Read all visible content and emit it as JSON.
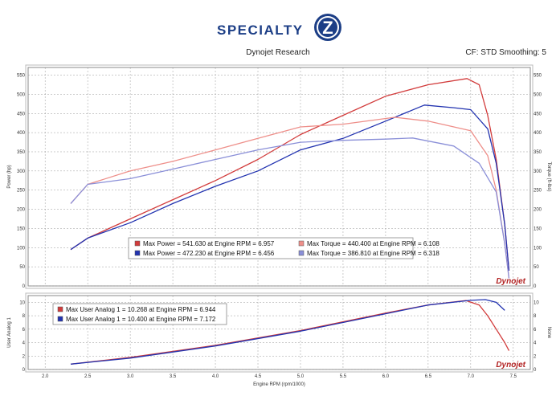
{
  "header": {
    "logo_text": "SPECIALTY",
    "logo_badge": "Z",
    "subtitle": "Dynojet Research",
    "cf_text": "CF: STD Smoothing: 5"
  },
  "brand_mark": "Dynojet",
  "colors": {
    "power_1": "#d23c3c",
    "power_2": "#2233b0",
    "torque_1": "#ee8f8a",
    "torque_2": "#8a8fd8"
  },
  "chart_data": [
    {
      "type": "line",
      "xlabel": "",
      "ylabel": "Power (hp)",
      "y2label": "Torque (ft-lbs)",
      "xlim": [
        1.8,
        7.7
      ],
      "ylim": [
        0,
        570
      ],
      "y_ticks": [
        0,
        50,
        100,
        150,
        200,
        250,
        300,
        350,
        400,
        450,
        500,
        550
      ],
      "grid": true,
      "legend_position": "bottom-center",
      "legend": [
        {
          "text": "Max Power = 541.630 at Engine RPM = 6.957",
          "color": "#d23c3c"
        },
        {
          "text": "Max Power = 472.230 at Engine RPM = 6.456",
          "color": "#2233b0"
        },
        {
          "text": "Max Torque = 440.400 at Engine RPM = 6.108",
          "color": "#ee8f8a"
        },
        {
          "text": "Max Torque = 386.810 at Engine RPM = 6.318",
          "color": "#8a8fd8"
        }
      ],
      "series": [
        {
          "key": "power_1",
          "color": "#d23c3c",
          "x": [
            2.3,
            2.5,
            3.0,
            3.5,
            4.0,
            4.5,
            5.0,
            5.5,
            6.0,
            6.5,
            6.957,
            7.1,
            7.2,
            7.3,
            7.4,
            7.45
          ],
          "y": [
            95,
            125,
            175,
            225,
            275,
            330,
            395,
            445,
            495,
            525,
            541,
            525,
            445,
            330,
            160,
            40
          ]
        },
        {
          "key": "power_2",
          "color": "#2233b0",
          "x": [
            2.3,
            2.5,
            3.0,
            3.5,
            4.0,
            4.5,
            5.0,
            5.5,
            6.0,
            6.456,
            6.8,
            7.0,
            7.2,
            7.3,
            7.4,
            7.45
          ],
          "y": [
            95,
            125,
            165,
            215,
            260,
            300,
            355,
            385,
            430,
            472,
            465,
            460,
            410,
            320,
            160,
            40
          ]
        },
        {
          "key": "torque_1",
          "color": "#ee8f8a",
          "x": [
            2.3,
            2.5,
            3.0,
            3.5,
            4.0,
            4.5,
            5.0,
            5.5,
            6.108,
            6.5,
            7.0,
            7.2,
            7.3,
            7.4,
            7.45
          ],
          "y": [
            215,
            265,
            300,
            325,
            355,
            385,
            415,
            422,
            440,
            430,
            405,
            340,
            250,
            110,
            20
          ]
        },
        {
          "key": "torque_2",
          "color": "#8a8fd8",
          "x": [
            2.3,
            2.5,
            3.0,
            3.5,
            4.0,
            4.5,
            5.0,
            5.5,
            6.0,
            6.318,
            6.8,
            7.1,
            7.3,
            7.4,
            7.45
          ],
          "y": [
            215,
            265,
            280,
            305,
            330,
            355,
            375,
            380,
            383,
            386,
            365,
            320,
            245,
            110,
            20
          ]
        }
      ]
    },
    {
      "type": "line",
      "xlabel": "Engine RPM (rpm/1000)",
      "ylabel": "User Analog 1",
      "y2label": "None",
      "xlim": [
        1.8,
        7.7
      ],
      "ylim": [
        0,
        11
      ],
      "x_ticks": [
        2.0,
        2.5,
        3.0,
        3.5,
        4.0,
        4.5,
        5.0,
        5.5,
        6.0,
        6.5,
        7.0,
        7.5
      ],
      "y_ticks": [
        0,
        2,
        4,
        6,
        8,
        10
      ],
      "grid": true,
      "legend_position": "top-left",
      "legend": [
        {
          "text": "Max User Analog 1 = 10.268 at Engine RPM = 6.944",
          "color": "#d23c3c"
        },
        {
          "text": "Max User Analog 1 = 10.400 at Engine RPM = 7.172",
          "color": "#2233b0"
        }
      ],
      "series": [
        {
          "key": "analog_1",
          "color": "#d23c3c",
          "x": [
            2.3,
            3.0,
            4.0,
            5.0,
            6.0,
            6.5,
            6.944,
            7.1,
            7.2,
            7.3,
            7.4,
            7.45
          ],
          "y": [
            0.8,
            1.8,
            3.6,
            5.8,
            8.4,
            9.6,
            10.268,
            9.6,
            8.0,
            6.0,
            4.0,
            2.8
          ]
        },
        {
          "key": "analog_2",
          "color": "#2233b0",
          "x": [
            2.3,
            3.0,
            4.0,
            5.0,
            6.0,
            6.5,
            7.0,
            7.172,
            7.3,
            7.4
          ],
          "y": [
            0.8,
            1.7,
            3.5,
            5.7,
            8.3,
            9.6,
            10.3,
            10.4,
            10.0,
            8.8
          ]
        }
      ]
    }
  ]
}
